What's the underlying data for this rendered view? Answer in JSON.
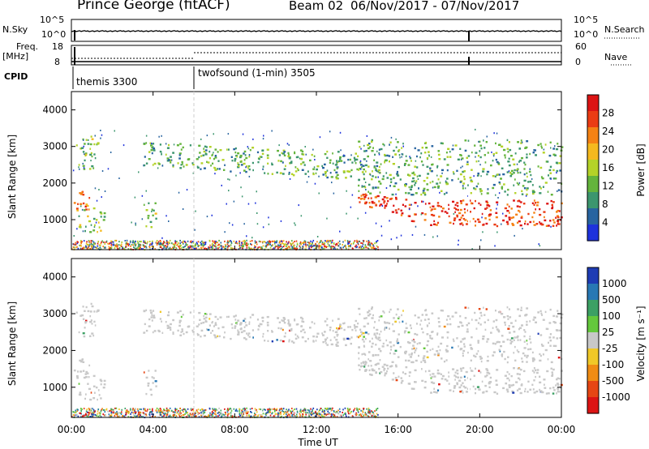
{
  "header": {
    "title": "Prince George (fitACF)",
    "beam": "Beam 02",
    "date_range": "06/Nov/2017 - 07/Nov/2017"
  },
  "aux_panels": {
    "nsky_label": "N.Sky",
    "nsky_ticks": [
      "10^5",
      "10^0"
    ],
    "nsearch_label": "N.Search",
    "nsearch_ticks": [
      "10^5",
      "10^0"
    ],
    "freq_label": "Freq.",
    "freq_unit": "[MHz]",
    "freq_ticks": [
      "18",
      "8"
    ],
    "nave_label": "Nave",
    "nave_ticks": [
      "60",
      "0"
    ],
    "cpid_label": "CPID",
    "cpid_programs": [
      {
        "name": "themis 3300",
        "start_hour": 0
      },
      {
        "name": "twofsound (1-min) 3505",
        "start_hour": 6
      }
    ]
  },
  "chart_data": [
    {
      "type": "heatmap",
      "name": "power",
      "ylabel": "Slant Range [km]",
      "ylim": [
        180,
        4500
      ],
      "yticks": [
        "1000",
        "2000",
        "3000",
        "4000"
      ],
      "xlim": [
        0,
        24
      ],
      "colorbar": {
        "label": "Power [dB]",
        "ticks": [
          "4",
          "8",
          "12",
          "16",
          "20",
          "24",
          "28"
        ],
        "colors": [
          "#1e32dc",
          "#2864a0",
          "#3c966e",
          "#64b43c",
          "#b4d228",
          "#f5b91e",
          "#f58214",
          "#eb3c14",
          "#dc1414"
        ]
      },
      "echo_regions": [
        {
          "t": [
            0.0,
            1.0
          ],
          "range": [
            1200,
            1800
          ],
          "level": 0.75
        },
        {
          "t": [
            0.2,
            1.3
          ],
          "range": [
            2400,
            3400
          ],
          "level": 0.4
        },
        {
          "t": [
            0.3,
            1.6
          ],
          "range": [
            650,
            1350
          ],
          "level": 0.45
        },
        {
          "t": [
            3.5,
            4.2
          ],
          "range": [
            800,
            1500
          ],
          "level": 0.4
        },
        {
          "t": [
            3.5,
            14.2
          ],
          "range": [
            2300,
            3200
          ],
          "level": 0.35
        },
        {
          "t": [
            14.0,
            24.0
          ],
          "range": [
            800,
            1700
          ],
          "level": 0.85
        },
        {
          "t": [
            14.0,
            24.0
          ],
          "range": [
            1700,
            3200
          ],
          "level": 0.35
        }
      ]
    },
    {
      "type": "heatmap",
      "name": "velocity",
      "ylabel": "Slant Range [km]",
      "ylim": [
        180,
        4500
      ],
      "yticks": [
        "1000",
        "2000",
        "3000",
        "4000"
      ],
      "xlim": [
        0,
        24
      ],
      "xlabel": "Time UT",
      "xticks": [
        "00:00",
        "04:00",
        "08:00",
        "12:00",
        "16:00",
        "20:00",
        "00:00"
      ],
      "colorbar": {
        "label": "Velocity [m s⁻¹]",
        "ticks": [
          "1000",
          "500",
          "100",
          "25",
          "-25",
          "-100",
          "-500",
          "-1000"
        ],
        "colors": [
          "#1e3cb4",
          "#2878b4",
          "#3ca064",
          "#64c83c",
          "#c8c8c8",
          "#f0c828",
          "#f08c14",
          "#e64614",
          "#dc1414"
        ]
      },
      "dominant_velocity": "ground scatter (grey)"
    }
  ]
}
